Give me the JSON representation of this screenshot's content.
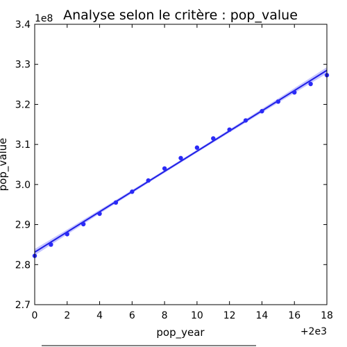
{
  "chart_data": {
    "type": "scatter",
    "title": "Analyse selon le critère : pop_value",
    "xlabel": "pop_year",
    "ylabel": "pop_value",
    "x_offset_label": "+2e3",
    "y_offset_label": "1e8",
    "xlim": [
      0,
      18
    ],
    "ylim": [
      2.7,
      3.4
    ],
    "x_ticks": [
      0,
      2,
      4,
      6,
      8,
      10,
      12,
      14,
      16,
      18
    ],
    "x_tick_labels": [
      "0",
      "2",
      "4",
      "6",
      "8",
      "10",
      "12",
      "14",
      "16",
      "18"
    ],
    "y_ticks": [
      2.7,
      2.8,
      2.9,
      3.0,
      3.1,
      3.2,
      3.3,
      3.4
    ],
    "y_tick_labels": [
      "2.7",
      "2.8",
      "2.9",
      "3.0",
      "3.1",
      "3.2",
      "3.3",
      "3.4"
    ],
    "grid": false,
    "series": [
      {
        "x": [
          0,
          1,
          2,
          3,
          4,
          5,
          6,
          7,
          8,
          9,
          10,
          11,
          12,
          13,
          14,
          15,
          16,
          17,
          18
        ],
        "y": [
          2.822,
          2.85,
          2.876,
          2.901,
          2.927,
          2.955,
          2.982,
          3.01,
          3.04,
          3.066,
          3.092,
          3.115,
          3.137,
          3.16,
          3.183,
          3.207,
          3.23,
          3.251,
          3.273
        ]
      }
    ],
    "regression": {
      "x": [
        0,
        18
      ],
      "y": [
        2.831,
        3.285
      ]
    },
    "colors": {
      "points": "#2a2af7",
      "line": "#1f1fe6",
      "band": "#b3b3ff"
    }
  }
}
